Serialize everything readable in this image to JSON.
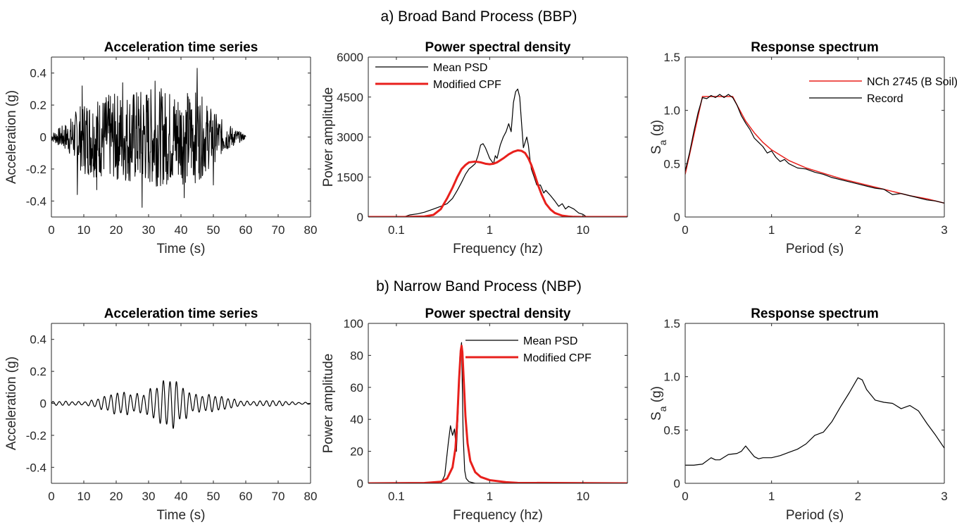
{
  "row_titles": [
    "a) Broad Band Process (BBP)",
    "b) Narrow Band Process (NBP)"
  ],
  "colors": {
    "record": "#000000",
    "model": "#e8201c",
    "axis": "#262626"
  },
  "chart_data": [
    {
      "id": "a-accel",
      "type": "line",
      "title": "Acceleration time series",
      "xlabel": "Time (s)",
      "ylabel": "Acceleration (g)",
      "xlim": [
        0,
        80
      ],
      "ylim": [
        -0.5,
        0.5
      ],
      "xticks": [
        0,
        10,
        20,
        30,
        40,
        50,
        60,
        70,
        80
      ],
      "xticklabels": [
        "0",
        "10",
        "20",
        "30",
        "40",
        "50",
        "60",
        "70",
        "80"
      ],
      "yticks": [
        -0.4,
        -0.2,
        0,
        0.2,
        0.4
      ],
      "yticklabels": [
        "-0.4",
        "-0.2",
        "0",
        "0.2",
        "0.4"
      ],
      "series": [
        {
          "kind": "noise",
          "color": "#000000",
          "width": 1,
          "t_start": 0,
          "t_end": 60,
          "dt": 0.1,
          "envelope": [
            [
              0,
              0.02
            ],
            [
              5,
              0.08
            ],
            [
              10,
              0.2
            ],
            [
              30,
              0.26
            ],
            [
              45,
              0.24
            ],
            [
              52,
              0.1
            ],
            [
              58,
              0.03
            ],
            [
              60,
              0.01
            ]
          ],
          "peaks": [
            [
              8,
              -0.36
            ],
            [
              9.5,
              0.32
            ],
            [
              14,
              -0.33
            ],
            [
              22,
              0.34
            ],
            [
              28,
              -0.44
            ],
            [
              32,
              0.35
            ],
            [
              41,
              -0.38
            ],
            [
              45,
              0.43
            ],
            [
              50,
              -0.3
            ]
          ]
        }
      ]
    },
    {
      "id": "a-psd",
      "type": "line",
      "xscale": "log",
      "title": "Power spectral density",
      "xlabel": "Frequency (hz)",
      "ylabel": "Power amplitude",
      "xlim": [
        0.05,
        30
      ],
      "ylim": [
        0,
        6000
      ],
      "xticks": [
        0.1,
        1,
        10
      ],
      "xticklabels": [
        "0.1",
        "1",
        "10"
      ],
      "yticks": [
        0,
        1500,
        3000,
        4500,
        6000
      ],
      "yticklabels": [
        "0",
        "1500",
        "3000",
        "4500",
        "6000"
      ],
      "legend": {
        "position": "top-left",
        "entries": [
          {
            "name": "Mean PSD",
            "color": "#000000",
            "width": 1.2
          },
          {
            "name": "Modified CPF",
            "color": "#e8201c",
            "width": 3
          }
        ]
      },
      "series": [
        {
          "name": "Mean PSD",
          "color": "#000000",
          "width": 1.2,
          "x": [
            0.05,
            0.12,
            0.14,
            0.17,
            0.2,
            0.25,
            0.3,
            0.35,
            0.4,
            0.45,
            0.5,
            0.55,
            0.6,
            0.65,
            0.7,
            0.75,
            0.8,
            0.85,
            0.9,
            0.95,
            1.0,
            1.05,
            1.1,
            1.15,
            1.2,
            1.3,
            1.4,
            1.5,
            1.6,
            1.7,
            1.8,
            1.9,
            2.0,
            2.1,
            2.2,
            2.3,
            2.4,
            2.5,
            2.6,
            2.7,
            2.8,
            3.0,
            3.2,
            3.5,
            3.8,
            4.0,
            4.5,
            5.0,
            5.5,
            6.0,
            6.5,
            7.0,
            8.0,
            9.0,
            10.0,
            11.0,
            30
          ],
          "y": [
            0,
            0,
            80,
            120,
            180,
            300,
            400,
            500,
            700,
            1000,
            1300,
            1600,
            1800,
            1900,
            2000,
            2300,
            2700,
            2750,
            2600,
            2400,
            2200,
            2100,
            2000,
            2300,
            2200,
            2700,
            3000,
            3200,
            3500,
            3200,
            4300,
            4700,
            4800,
            4500,
            3500,
            2600,
            2800,
            3000,
            2700,
            2200,
            1800,
            1500,
            1200,
            1200,
            900,
            1000,
            800,
            600,
            400,
            500,
            300,
            400,
            300,
            150,
            100,
            0,
            0
          ]
        },
        {
          "name": "Modified CPF",
          "color": "#e8201c",
          "width": 3,
          "x": [
            0.05,
            0.12,
            0.2,
            0.25,
            0.3,
            0.35,
            0.4,
            0.45,
            0.5,
            0.55,
            0.6,
            0.7,
            0.8,
            0.9,
            1.0,
            1.1,
            1.2,
            1.4,
            1.6,
            1.8,
            2.0,
            2.2,
            2.4,
            2.6,
            2.8,
            3.0,
            3.3,
            3.6,
            4.0,
            4.5,
            5.0,
            6.0,
            7.0,
            8.0,
            10.0,
            12.0,
            30
          ],
          "y": [
            0,
            0,
            20,
            80,
            300,
            700,
            1100,
            1500,
            1800,
            1950,
            2050,
            2080,
            2050,
            2000,
            1980,
            2000,
            2050,
            2200,
            2350,
            2450,
            2500,
            2480,
            2400,
            2200,
            1950,
            1650,
            1200,
            850,
            500,
            280,
            150,
            50,
            20,
            5,
            0,
            0,
            0
          ]
        }
      ]
    },
    {
      "id": "a-resp",
      "type": "line",
      "title": "Response spectrum",
      "xlabel": "Period (s)",
      "ylabel": "S",
      "ylabel_sub": "a",
      "ylabel_tail": " (g)",
      "xlim": [
        0,
        3
      ],
      "ylim": [
        0,
        1.5
      ],
      "xticks": [
        0,
        1,
        2,
        3
      ],
      "xticklabels": [
        "0",
        "1",
        "2",
        "3"
      ],
      "yticks": [
        0,
        0.5,
        1.0,
        1.5
      ],
      "yticklabels": [
        "0",
        "0.5",
        "1.0",
        "1.5"
      ],
      "legend": {
        "position": "top-right",
        "entries": [
          {
            "name": "NCh 2745 (B Soil)",
            "color": "#e8201c",
            "width": 1.5
          },
          {
            "name": "Record",
            "color": "#000000",
            "width": 1.2
          }
        ]
      },
      "series": [
        {
          "name": "NCh 2745 (B Soil)",
          "color": "#e8201c",
          "width": 1.5,
          "x": [
            0,
            0.2,
            0.55,
            0.6,
            0.7,
            0.8,
            0.9,
            1.0,
            1.2,
            1.4,
            1.6,
            1.8,
            2.0,
            2.2,
            2.4,
            2.6,
            2.8,
            3.0
          ],
          "y": [
            0.4,
            1.13,
            1.13,
            1.05,
            0.9,
            0.79,
            0.7,
            0.63,
            0.53,
            0.46,
            0.41,
            0.36,
            0.32,
            0.28,
            0.24,
            0.2,
            0.17,
            0.13
          ]
        },
        {
          "name": "Record",
          "color": "#000000",
          "width": 1.2,
          "x": [
            0,
            0.05,
            0.1,
            0.15,
            0.2,
            0.25,
            0.3,
            0.35,
            0.4,
            0.45,
            0.5,
            0.55,
            0.6,
            0.65,
            0.7,
            0.75,
            0.8,
            0.85,
            0.9,
            0.95,
            1.0,
            1.05,
            1.1,
            1.15,
            1.2,
            1.3,
            1.4,
            1.5,
            1.6,
            1.7,
            1.8,
            1.9,
            2.0,
            2.1,
            2.2,
            2.3,
            2.4,
            2.5,
            2.6,
            2.7,
            2.8,
            2.9,
            3.0
          ],
          "y": [
            0.43,
            0.6,
            0.8,
            0.98,
            1.12,
            1.11,
            1.14,
            1.12,
            1.15,
            1.12,
            1.15,
            1.12,
            1.05,
            0.95,
            0.88,
            0.82,
            0.74,
            0.7,
            0.66,
            0.6,
            0.62,
            0.56,
            0.52,
            0.54,
            0.5,
            0.46,
            0.45,
            0.42,
            0.4,
            0.37,
            0.35,
            0.33,
            0.31,
            0.29,
            0.27,
            0.26,
            0.21,
            0.22,
            0.2,
            0.18,
            0.16,
            0.15,
            0.13
          ]
        }
      ]
    },
    {
      "id": "b-accel",
      "type": "line",
      "title": "Acceleration time series",
      "xlabel": "Time (s)",
      "ylabel": "Acceleration (g)",
      "xlim": [
        0,
        80
      ],
      "ylim": [
        -0.5,
        0.5
      ],
      "xticks": [
        0,
        10,
        20,
        30,
        40,
        50,
        60,
        70,
        80
      ],
      "xticklabels": [
        "0",
        "10",
        "20",
        "30",
        "40",
        "50",
        "60",
        "70",
        "80"
      ],
      "yticks": [
        -0.4,
        -0.2,
        0,
        0.2,
        0.4
      ],
      "yticklabels": [
        "-0.4",
        "-0.2",
        "0",
        "0.2",
        "0.4"
      ],
      "series": [
        {
          "kind": "narrowband",
          "color": "#000000",
          "width": 1.2,
          "t_start": 0,
          "t_end": 80,
          "dt": 0.05,
          "freq_hz": 0.5,
          "envelope": [
            [
              0,
              0.01
            ],
            [
              10,
              0.02
            ],
            [
              18,
              0.05
            ],
            [
              24,
              0.1
            ],
            [
              28,
              0.11
            ],
            [
              33,
              0.12
            ],
            [
              38,
              0.16
            ],
            [
              42,
              0.14
            ],
            [
              46,
              0.08
            ],
            [
              52,
              0.04
            ],
            [
              60,
              0.025
            ],
            [
              70,
              0.015
            ],
            [
              80,
              0.01
            ]
          ]
        }
      ]
    },
    {
      "id": "b-psd",
      "type": "line",
      "xscale": "log",
      "title": "Power spectral density",
      "xlabel": "Frequency (hz)",
      "ylabel": "Power amplitude",
      "xlim": [
        0.05,
        30
      ],
      "ylim": [
        0,
        100
      ],
      "xticks": [
        0.1,
        1,
        10
      ],
      "xticklabels": [
        "0.1",
        "1",
        "10"
      ],
      "yticks": [
        0,
        20,
        40,
        60,
        80,
        100
      ],
      "yticklabels": [
        "0",
        "20",
        "40",
        "60",
        "80",
        "100"
      ],
      "legend": {
        "position": "top-right",
        "entries": [
          {
            "name": "Mean PSD",
            "color": "#000000",
            "width": 1.2
          },
          {
            "name": "Modified CPF",
            "color": "#e8201c",
            "width": 3
          }
        ]
      },
      "series": [
        {
          "name": "Mean PSD",
          "color": "#000000",
          "width": 1.2,
          "x": [
            0.05,
            0.3,
            0.33,
            0.36,
            0.38,
            0.4,
            0.42,
            0.44,
            0.46,
            0.48,
            0.5,
            0.52,
            0.54,
            0.56,
            0.6,
            0.7,
            30
          ],
          "y": [
            0,
            0,
            5,
            25,
            36,
            30,
            34,
            20,
            45,
            80,
            88,
            30,
            8,
            3,
            1,
            0,
            0
          ]
        },
        {
          "name": "Modified CPF",
          "color": "#e8201c",
          "width": 3,
          "x": [
            0.05,
            0.2,
            0.3,
            0.35,
            0.4,
            0.43,
            0.45,
            0.47,
            0.49,
            0.5,
            0.51,
            0.53,
            0.55,
            0.58,
            0.62,
            0.7,
            0.8,
            1.0,
            1.5,
            2,
            30
          ],
          "y": [
            0,
            0.2,
            1,
            3,
            10,
            22,
            40,
            65,
            83,
            86,
            82,
            62,
            42,
            25,
            14,
            7,
            4,
            2,
            0.7,
            0.3,
            0
          ]
        }
      ]
    },
    {
      "id": "b-resp",
      "type": "line",
      "title": "Response spectrum",
      "xlabel": "Period (s)",
      "ylabel": "S",
      "ylabel_sub": "a",
      "ylabel_tail": " (g)",
      "xlim": [
        0,
        3
      ],
      "ylim": [
        0,
        1.5
      ],
      "xticks": [
        0,
        1,
        2,
        3
      ],
      "xticklabels": [
        "0",
        "1",
        "2",
        "3"
      ],
      "yticks": [
        0,
        0.5,
        1.0,
        1.5
      ],
      "yticklabels": [
        "0",
        "0.5",
        "1.0",
        "1.5"
      ],
      "series": [
        {
          "name": "Record",
          "color": "#000000",
          "width": 1.2,
          "x": [
            0,
            0.1,
            0.2,
            0.3,
            0.35,
            0.4,
            0.5,
            0.6,
            0.65,
            0.7,
            0.75,
            0.8,
            0.85,
            0.9,
            1.0,
            1.1,
            1.2,
            1.3,
            1.4,
            1.5,
            1.6,
            1.7,
            1.8,
            1.9,
            2.0,
            2.05,
            2.1,
            2.2,
            2.3,
            2.4,
            2.5,
            2.6,
            2.7,
            2.8,
            2.9,
            3.0
          ],
          "y": [
            0.17,
            0.17,
            0.18,
            0.24,
            0.22,
            0.22,
            0.27,
            0.28,
            0.3,
            0.35,
            0.3,
            0.25,
            0.23,
            0.24,
            0.24,
            0.26,
            0.29,
            0.32,
            0.37,
            0.45,
            0.48,
            0.58,
            0.72,
            0.85,
            0.99,
            0.97,
            0.88,
            0.78,
            0.76,
            0.75,
            0.7,
            0.73,
            0.68,
            0.56,
            0.45,
            0.33
          ]
        }
      ]
    }
  ]
}
